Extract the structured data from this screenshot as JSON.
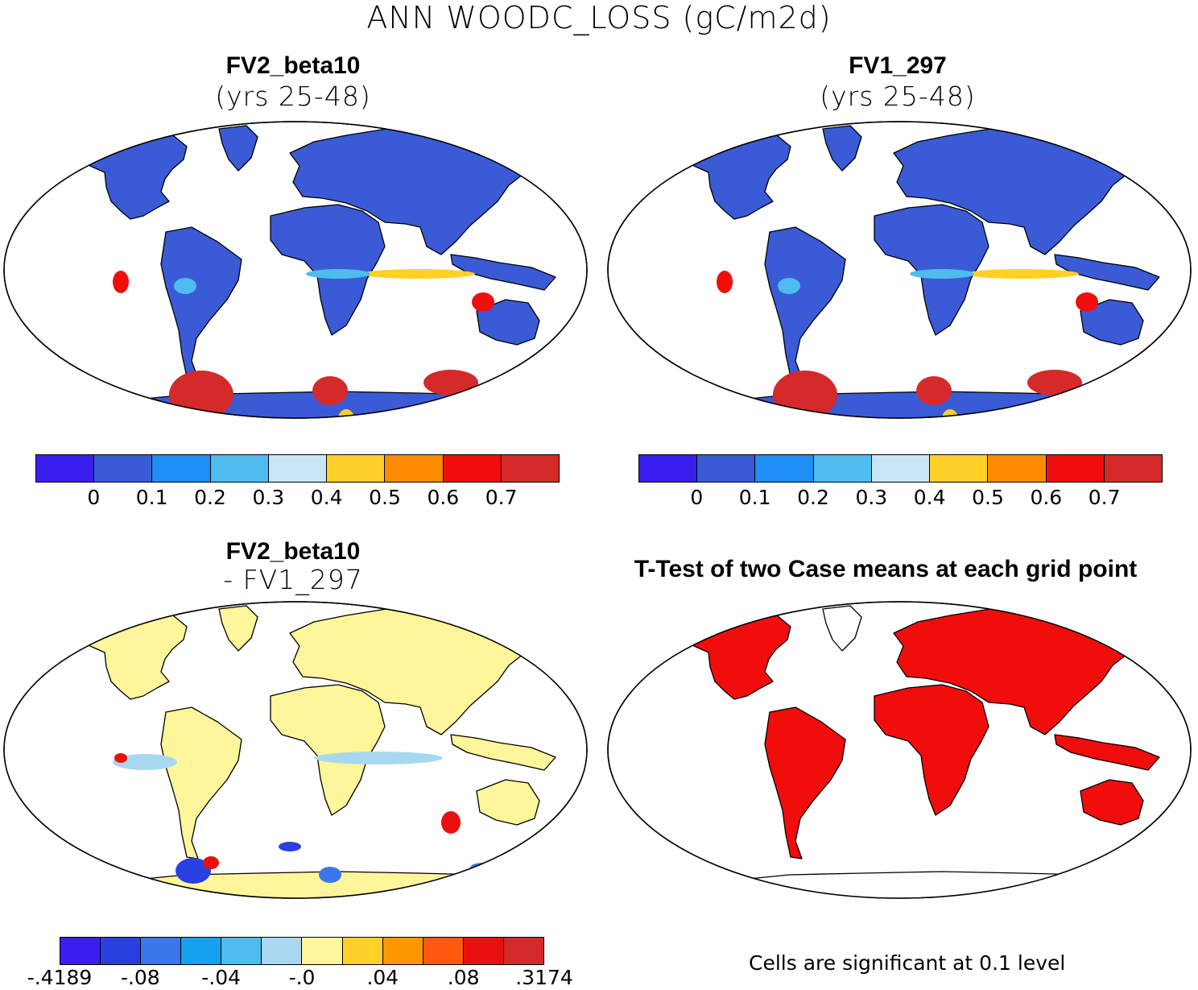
{
  "title": "ANN WOODC_LOSS (gC/m2d)",
  "panels": {
    "top_left": {
      "title": "FV2_beta10",
      "subtitle": "(yrs 25-48)"
    },
    "top_right": {
      "title": "FV1_297",
      "subtitle": "(yrs 25-48)"
    },
    "bottom_left": {
      "title": "FV2_beta10",
      "subtitle": "- FV1_297"
    },
    "bottom_right": {
      "title": "T-Test of two Case means at each grid point",
      "note": "Cells are significant at 0.1 level"
    }
  },
  "colorbar_main": {
    "colors": [
      "#3a1ef0",
      "#3b5bd6",
      "#1f8ef5",
      "#4fbcef",
      "#c8e6f8",
      "#ffd027",
      "#ff8c00",
      "#f20d0d",
      "#d42a2a"
    ],
    "tick_labels": [
      "0",
      "0.1",
      "0.2",
      "0.3",
      "0.4",
      "0.5",
      "0.6",
      "0.7"
    ]
  },
  "colorbar_diff": {
    "colors": [
      "#3a1ef0",
      "#2a3fe0",
      "#3a78ea",
      "#16a0f0",
      "#4fbcef",
      "#a8d8f0",
      "#fff59a",
      "#ffd027",
      "#ff9800",
      "#ff5a10",
      "#ea1010",
      "#d42a2a"
    ],
    "tick_labels": [
      "-.4189",
      "-.08",
      "-.04",
      "-.0",
      ".04",
      ".08",
      ".3174"
    ]
  },
  "map_colors": {
    "ocean": "#ffffff",
    "land_low": "#3b5bd6",
    "tropics_high": "#d42a2a",
    "diff_background": "#fff59a",
    "significant": "#f20d0d"
  }
}
